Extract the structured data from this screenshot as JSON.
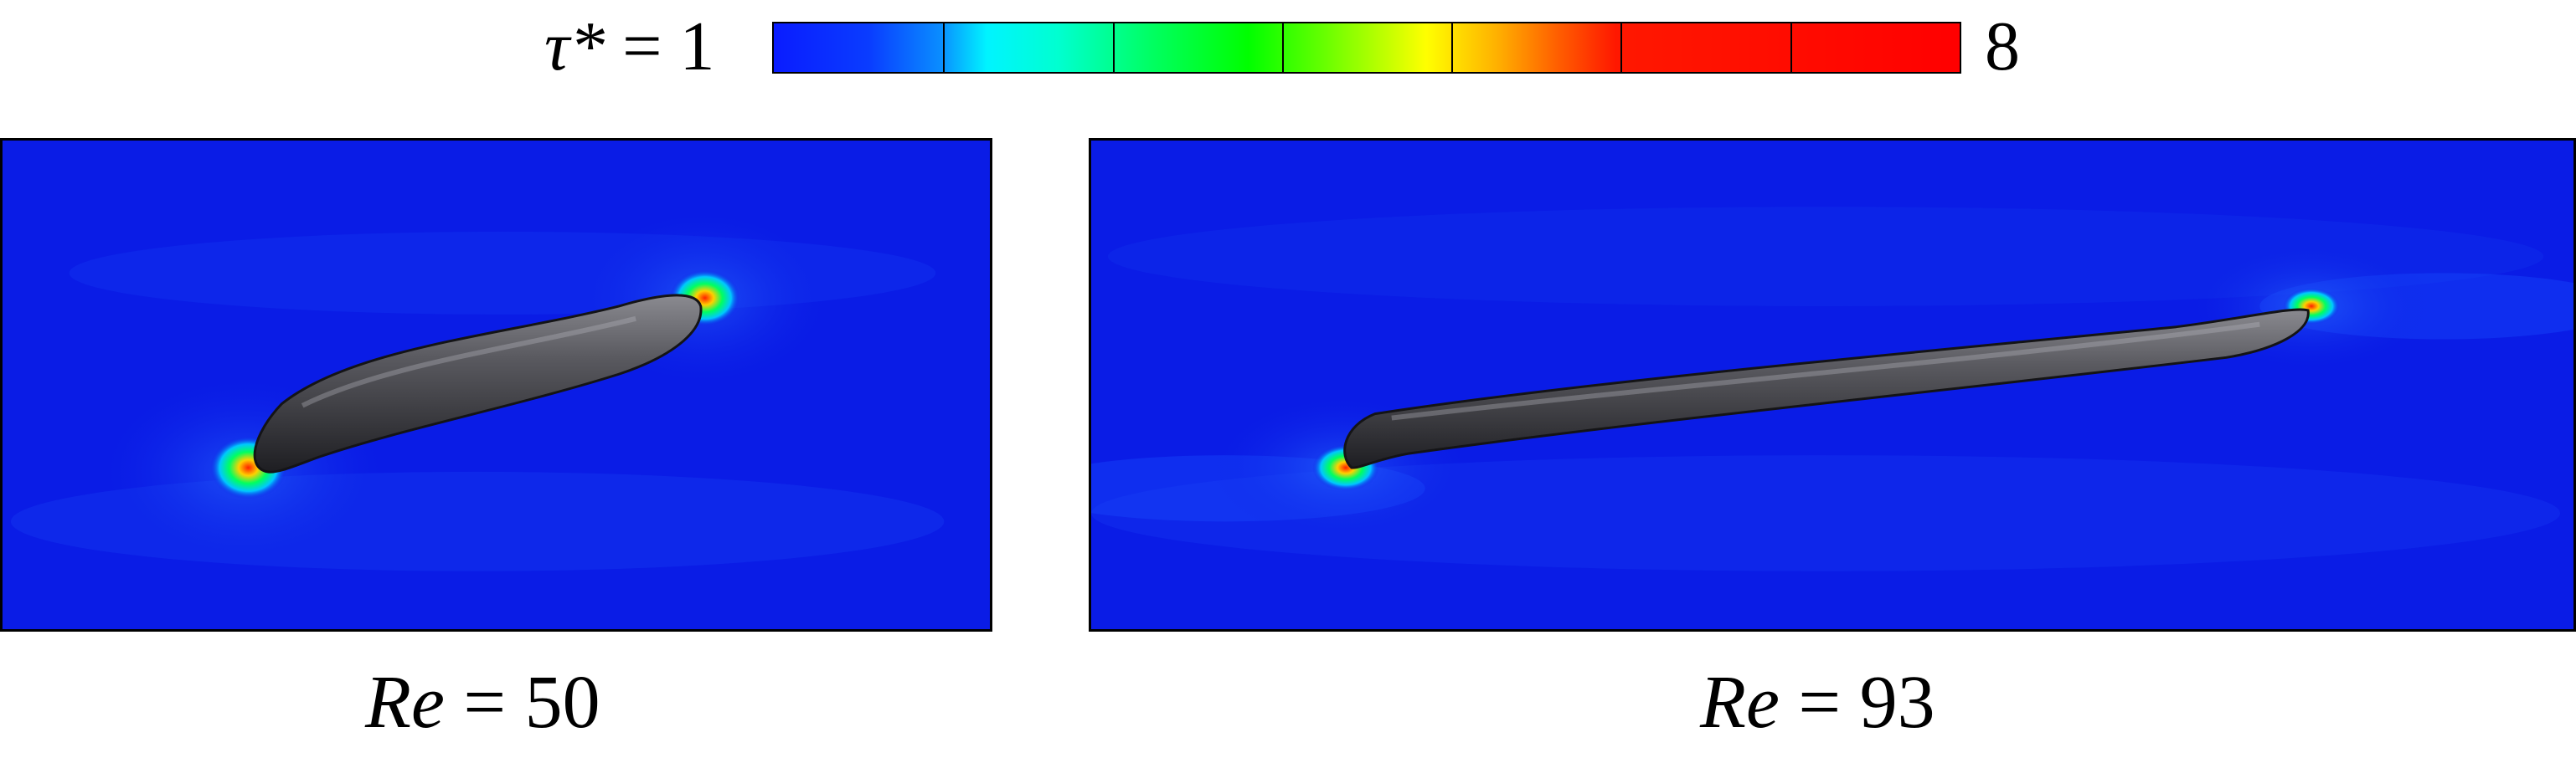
{
  "colorbar": {
    "min_symbol": "τ*",
    "min_equals": " = 1",
    "max_label": "8",
    "tick_fractions": [
      0.1428,
      0.2857,
      0.4286,
      0.5714,
      0.7143,
      0.8571
    ],
    "colors": {
      "low": "#0a1cff",
      "cyan": "#00f4ff",
      "green": "#00ff00",
      "yellow": "#ffff00",
      "orange": "#ffb000",
      "high": "#ff0000"
    }
  },
  "panels": [
    {
      "caption_symbol": "Re",
      "caption_value": " = 50",
      "background_color": "#0a1ce6",
      "drop_color": "#3c3c40"
    },
    {
      "caption_symbol": "Re",
      "caption_value": " = 93",
      "background_color": "#0a1ce6",
      "drop_color": "#3c3c40"
    }
  ]
}
